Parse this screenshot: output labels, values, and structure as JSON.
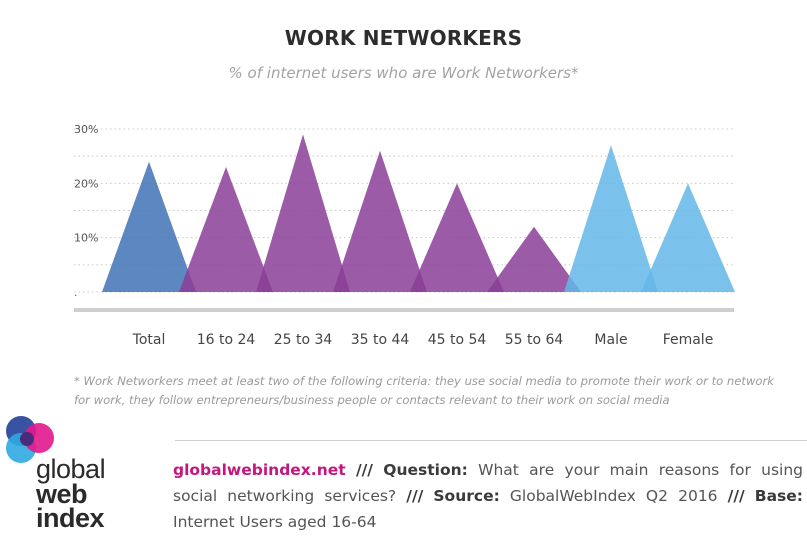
{
  "chart_data": {
    "type": "area",
    "title": "WORK NETWORKERS",
    "subtitle": "% of internet users who are Work Networkers*",
    "categories": [
      "Total",
      "16 to 24",
      "25 to 34",
      "35 to 44",
      "45 to 54",
      "55 to 64",
      "Male",
      "Female"
    ],
    "values": [
      24,
      23,
      29,
      26,
      20,
      12,
      27,
      20
    ],
    "series_colors": [
      "#3f72b5",
      "#8b3e98",
      "#8b3e98",
      "#8b3e98",
      "#8b3e98",
      "#8b3e98",
      "#63b7e8",
      "#63b7e8"
    ],
    "ylim": [
      0,
      30
    ],
    "yticks": [
      "30%",
      "20%",
      "10%",
      "."
    ],
    "grid": true,
    "xlabel": "",
    "ylabel": ""
  },
  "footnote": "* Work Networkers meet at least two of the following criteria: they use social media to promote their work or to network for work, they follow entrepreneurs/business people or contacts relevant to their work on social media",
  "logo": {
    "line1": "global",
    "line2": "web",
    "line3": "index",
    "colors": [
      "#2e4a9e",
      "#e2178c",
      "#2fa8e0",
      "#4a2a7a"
    ]
  },
  "source": {
    "site": "globalwebindex.net",
    "sep": "///",
    "question_label": "Question:",
    "question_text": "What are your main reasons for using social networking services?",
    "source_label": "Source:",
    "source_text": "GlobalWebIndex Q2 2016",
    "base_label": "Base:",
    "base_text": "Internet Users aged 16-64"
  }
}
